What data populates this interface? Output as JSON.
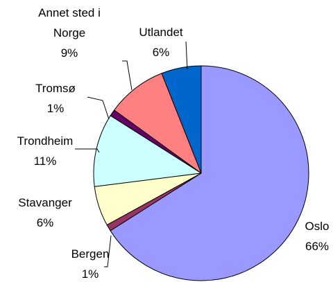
{
  "chart_data": {
    "type": "pie",
    "categories": [
      "Oslo",
      "Bergen",
      "Stavanger",
      "Trondheim",
      "Tromsø",
      "Annet sted i Norge",
      "Utlandet"
    ],
    "values": [
      66,
      1,
      6,
      11,
      1,
      9,
      6
    ],
    "value_labels": [
      "66%",
      "1%",
      "6%",
      "11%",
      "1%",
      "9%",
      "6%"
    ],
    "colors": [
      "#9999ff",
      "#993366",
      "#ffffcc",
      "#ccffff",
      "#660066",
      "#ff8080",
      "#0066cc"
    ]
  }
}
